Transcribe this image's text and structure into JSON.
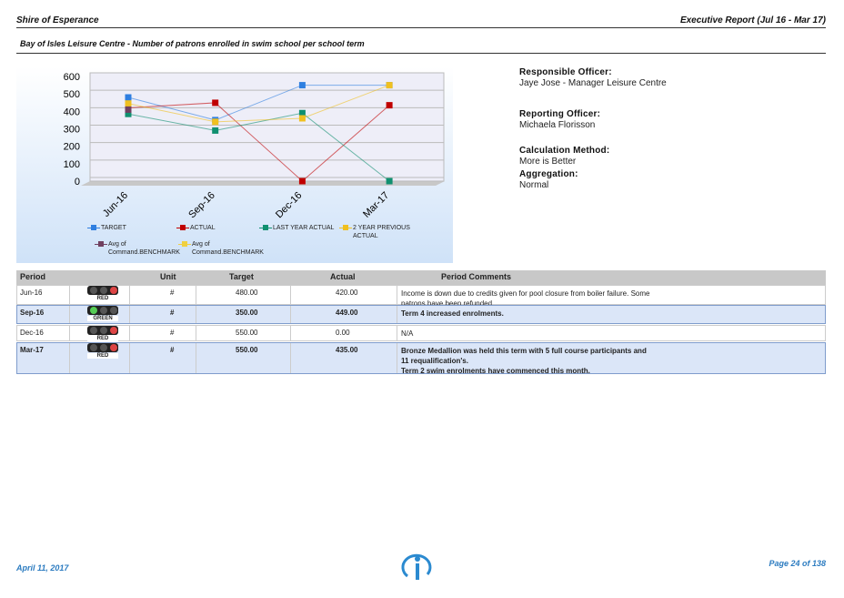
{
  "header": {
    "org": "Shire of Esperance",
    "report": "Executive Report (Jul 16 - Mar 17)",
    "subtitle": "Bay of Isles Leisure Centre - Number of patrons enrolled in swim school per school term"
  },
  "chart_data": {
    "type": "line",
    "categories": [
      "Jun-16",
      "Sep-16",
      "Dec-16",
      "Mar-17"
    ],
    "series": [
      {
        "name": "TARGET",
        "color": "#2f7fe0",
        "values": [
          480,
          350,
          550,
          550
        ]
      },
      {
        "name": "ACTUAL",
        "color": "#c00000",
        "values": [
          420,
          449,
          0,
          435
        ]
      },
      {
        "name": "LAST YEAR ACTUAL",
        "color": "#109070",
        "values": [
          385,
          290,
          390,
          0
        ]
      },
      {
        "name": "2 YEAR PREVIOUS ACTUAL",
        "color": "#f0c020",
        "values": [
          445,
          340,
          360,
          550
        ]
      },
      {
        "name": "Avg of Command.BENCHMARK",
        "color": "#704060",
        "values": [
          410,
          null,
          null,
          null
        ]
      },
      {
        "name": "Avg of Command.BENCHMARK",
        "color": "#f0d040",
        "values": [
          null,
          null,
          null,
          null
        ]
      }
    ],
    "ylim": [
      0,
      600
    ],
    "yticks": [
      0,
      100,
      200,
      300,
      400,
      500,
      600
    ],
    "grid": true
  },
  "info": [
    {
      "label": "Responsible Officer:",
      "value": "Jaye Jose - Manager Leisure Centre"
    },
    {
      "label": "Reporting Officer:",
      "value": "Michaela Florisson"
    },
    {
      "label": "Calculation Method:",
      "value": "More is Better"
    },
    {
      "label": "Aggregation:",
      "value": "Normal"
    }
  ],
  "table": {
    "columns": [
      "Period",
      "Unit",
      "Target",
      "Actual",
      "Period Comments"
    ],
    "rows": [
      {
        "period": "Jun-16",
        "status": "RED",
        "unit": "#",
        "target": "480.00",
        "actual": "420.00",
        "comments": [
          "Income is down due to credits given for pool closure from boiler failure. Some patrons have been refunded."
        ]
      },
      {
        "period": "Sep-16",
        "status": "GREEN",
        "unit": "#",
        "target": "350.00",
        "actual": "449.00",
        "comments": [
          "Term 4 increased enrolments."
        ]
      },
      {
        "period": "Dec-16",
        "status": "RED",
        "unit": "#",
        "target": "550.00",
        "actual": "0.00",
        "comments": [
          "N/A"
        ]
      },
      {
        "period": "Mar-17",
        "status": "RED",
        "unit": "#",
        "target": "550.00",
        "actual": "435.00",
        "comments": [
          "Bronze Medallion was held this term with 5 full course participants and 11 requalification's.",
          "Term 2 swim enrolments have commenced this month."
        ]
      }
    ]
  },
  "footer": {
    "date": "April 11, 2017",
    "page": "Page 24 of 138"
  }
}
